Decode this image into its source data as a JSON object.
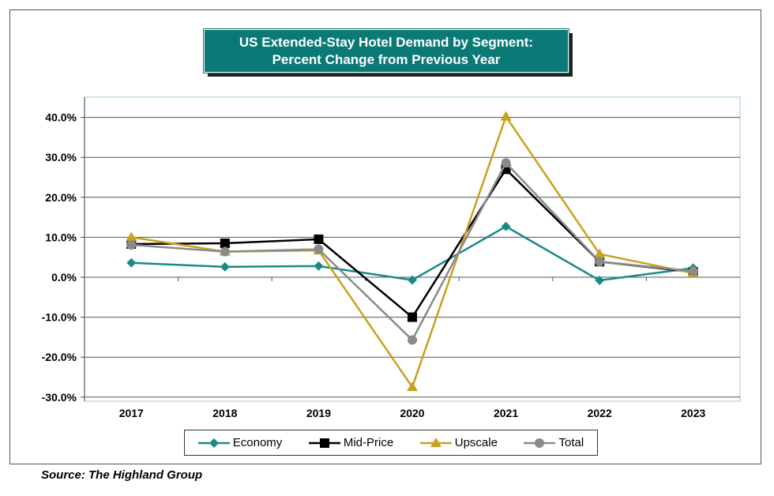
{
  "chart_data": {
    "type": "line",
    "title": "US Extended-Stay Hotel Demand by Segment: Percent Change from Previous Year",
    "title_lines": [
      "US Extended-Stay Hotel Demand by Segment:",
      "Percent Change from Previous Year"
    ],
    "categories": [
      "2017",
      "2018",
      "2019",
      "2020",
      "2021",
      "2022",
      "2023"
    ],
    "ylim": [
      -30,
      40
    ],
    "yticks": [
      "40.0%",
      "30.0%",
      "20.0%",
      "10.0%",
      "0.0%",
      "-10.0%",
      "-20.0%",
      "-30.0%"
    ],
    "ytick_values": [
      40,
      30,
      20,
      10,
      0,
      -10,
      -20,
      -30
    ],
    "grid": true,
    "legend_position": "bottom",
    "series": [
      {
        "name": "Economy",
        "color": "#1a8a88",
        "marker": "diamond",
        "values": [
          3.6,
          2.6,
          2.8,
          -0.7,
          12.7,
          -0.8,
          2.3
        ]
      },
      {
        "name": "Mid-Price",
        "color": "#000000",
        "marker": "square",
        "values": [
          8.3,
          8.5,
          9.5,
          -10.0,
          27.0,
          3.9,
          1.3
        ]
      },
      {
        "name": "Upscale",
        "color": "#c9a020",
        "marker": "triangle",
        "values": [
          10.0,
          6.4,
          6.7,
          -27.5,
          40.2,
          5.8,
          1.0
        ]
      },
      {
        "name": "Total",
        "color": "#8a8a8a",
        "marker": "circle",
        "values": [
          8.1,
          6.4,
          7.0,
          -15.7,
          28.6,
          3.9,
          1.5
        ]
      }
    ]
  },
  "source": "Source: The Highland Group"
}
